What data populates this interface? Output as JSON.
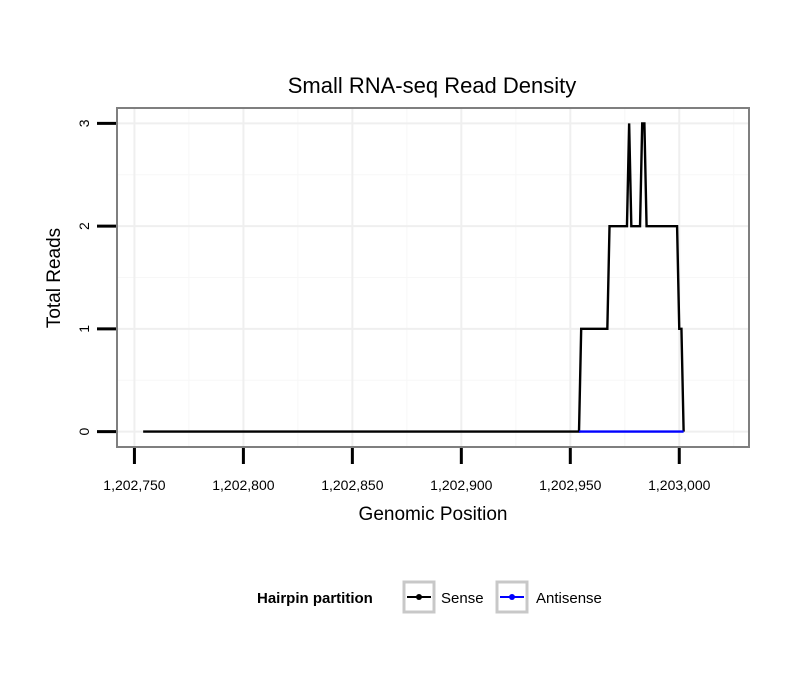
{
  "chart_data": {
    "type": "line",
    "title": "Small RNA-seq Read Density",
    "xlabel": "Genomic Position",
    "ylabel": "Total Reads",
    "xlim": [
      1202742,
      1203032
    ],
    "ylim": [
      -0.15,
      3.15
    ],
    "x_ticks": [
      1202750,
      1202800,
      1202850,
      1202900,
      1202950,
      1203000
    ],
    "x_tick_labels": [
      "1,202,750",
      "1,202,800",
      "1,202,850",
      "1,202,900",
      "1,202,950",
      "1,203,000"
    ],
    "y_ticks": [
      0,
      1,
      2,
      3
    ],
    "y_tick_labels": [
      "0",
      "1",
      "2",
      "3"
    ],
    "grid": true,
    "legend": {
      "title": "Hairpin partition",
      "position": "bottom",
      "entries": [
        "Sense",
        "Antisense"
      ]
    },
    "series": [
      {
        "name": "Sense",
        "color": "#000000",
        "points": [
          [
            1202754,
            0
          ],
          [
            1202954,
            0
          ],
          [
            1202955,
            1
          ],
          [
            1202967,
            1
          ],
          [
            1202968,
            2
          ],
          [
            1202976,
            2
          ],
          [
            1202977,
            3
          ],
          [
            1202978,
            2
          ],
          [
            1202982,
            2
          ],
          [
            1202983,
            3
          ],
          [
            1202984,
            3
          ],
          [
            1202985,
            2
          ],
          [
            1202999,
            2
          ],
          [
            1203000,
            1
          ],
          [
            1203001,
            1
          ],
          [
            1203002,
            0
          ]
        ]
      },
      {
        "name": "Antisense",
        "color": "#0000ff",
        "points": [
          [
            1202954,
            0
          ],
          [
            1203002,
            0
          ]
        ]
      }
    ]
  }
}
